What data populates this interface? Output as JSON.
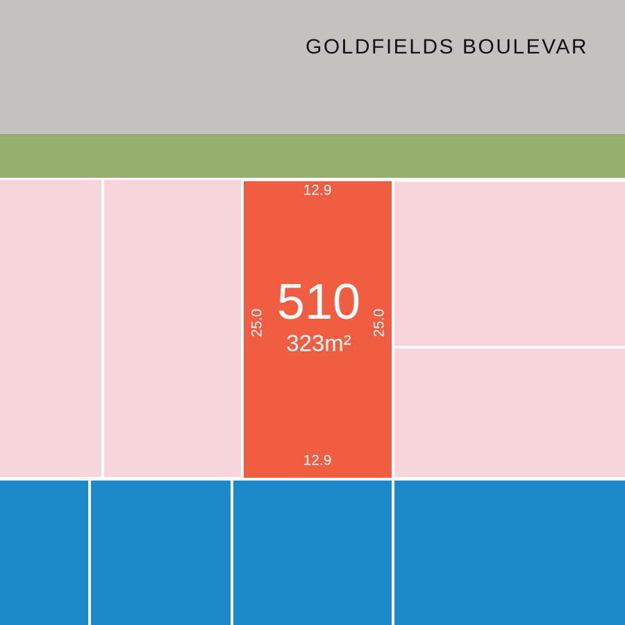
{
  "street": {
    "name": "GOLDFIELDS BOULEVAR"
  },
  "lot": {
    "number": "510",
    "area": "323m²",
    "frontage_top": "12.9",
    "frontage_bottom": "12.9",
    "depth_left": "25.0",
    "depth_right": "25.0"
  }
}
